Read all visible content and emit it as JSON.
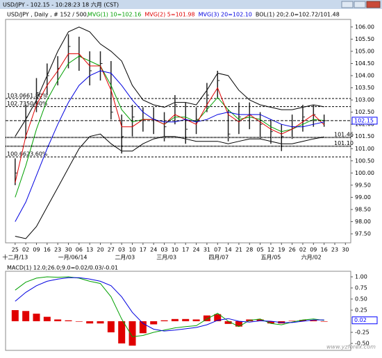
{
  "window": {
    "title": "USD/JPY - 102.15 - 10:28:23  18 六月 (CST)",
    "watermark": "www.yzforex.com"
  },
  "chart_data": [
    {
      "type": "ohlc",
      "title": "USD/JPY , Daily , # 152 / 500,",
      "x": [
        0,
        1,
        2,
        3,
        4,
        5,
        6,
        7,
        8,
        9,
        10,
        11,
        12,
        13,
        14,
        15,
        16,
        17,
        18,
        19,
        20,
        21,
        22,
        23,
        24,
        25,
        26,
        27,
        28,
        29
      ],
      "high": [
        100.6,
        102.8,
        103.9,
        104.5,
        104.8,
        105.7,
        105.6,
        105.0,
        105.0,
        104.6,
        102.4,
        102.8,
        102.7,
        102.7,
        102.5,
        103.2,
        102.9,
        102.7,
        103.7,
        104.2,
        102.6,
        102.9,
        102.9,
        102.5,
        102.2,
        102.0,
        102.4,
        102.8,
        102.8,
        102.4
      ],
      "low": [
        99.5,
        101.4,
        102.5,
        103.2,
        103.6,
        104.3,
        104.2,
        103.6,
        103.8,
        102.2,
        100.8,
        101.5,
        101.7,
        101.6,
        101.3,
        102.0,
        101.2,
        101.6,
        102.5,
        103.1,
        101.3,
        101.6,
        101.8,
        101.4,
        101.2,
        100.9,
        101.4,
        101.7,
        101.9,
        101.9
      ],
      "close": [
        100.0,
        102.3,
        103.3,
        104.0,
        104.3,
        105.2,
        104.8,
        104.2,
        104.5,
        102.5,
        101.5,
        102.3,
        102.2,
        102.2,
        101.9,
        102.8,
        101.8,
        102.2,
        103.2,
        103.8,
        101.6,
        102.3,
        102.4,
        102.0,
        101.7,
        101.5,
        101.9,
        102.3,
        102.4,
        102.15
      ],
      "bar_color": "#222222",
      "series": [
        {
          "name": "MVG(1) 10=102.16",
          "color": "#00a000",
          "values": [
            99.0,
            100.3,
            101.8,
            103.0,
            103.8,
            104.5,
            104.8,
            104.6,
            104.4,
            103.6,
            102.6,
            102.1,
            102.2,
            102.2,
            102.0,
            102.3,
            102.3,
            102.1,
            102.6,
            103.1,
            102.6,
            102.2,
            102.3,
            102.2,
            101.9,
            101.7,
            101.8,
            102.0,
            102.2,
            102.16
          ]
        },
        {
          "name": "MVG(2) 5=101.98",
          "color": "#e00000",
          "values": [
            99.6,
            101.5,
            102.8,
            103.6,
            104.2,
            104.9,
            104.9,
            104.4,
            104.4,
            103.4,
            101.9,
            101.9,
            102.2,
            102.2,
            102.0,
            102.4,
            102.2,
            102.0,
            102.8,
            103.5,
            102.4,
            102.1,
            102.4,
            102.1,
            101.8,
            101.6,
            101.8,
            102.1,
            102.4,
            101.98
          ]
        },
        {
          "name": "MVG(3) 20=102.10",
          "color": "#0000e0",
          "values": [
            98.0,
            98.8,
            99.9,
            101.0,
            102.0,
            102.9,
            103.6,
            104.0,
            104.2,
            104.1,
            103.6,
            103.0,
            102.5,
            102.2,
            102.1,
            102.1,
            102.2,
            102.1,
            102.2,
            102.4,
            102.5,
            102.4,
            102.4,
            102.4,
            102.2,
            102.0,
            101.9,
            101.9,
            102.0,
            102.1
          ]
        }
      ],
      "band_name": "BOL(1) 20;2.0=102.72/101.48",
      "band_color": "#000000",
      "upper": [
        101.5,
        102.2,
        103.0,
        104.0,
        105.0,
        105.8,
        106.0,
        105.8,
        105.3,
        105.0,
        104.6,
        103.6,
        103.0,
        102.8,
        102.7,
        102.9,
        102.9,
        102.8,
        103.4,
        104.1,
        104.0,
        103.4,
        103.0,
        102.8,
        102.7,
        102.6,
        102.6,
        102.7,
        102.8,
        102.72
      ],
      "lower": [
        97.4,
        97.3,
        97.8,
        98.6,
        99.4,
        100.2,
        101.0,
        101.5,
        101.6,
        101.2,
        100.9,
        100.9,
        101.2,
        101.4,
        101.5,
        101.5,
        101.4,
        101.3,
        101.3,
        101.3,
        101.2,
        101.3,
        101.4,
        101.4,
        101.3,
        101.2,
        101.2,
        101.3,
        101.4,
        101.48
      ],
      "levels": [
        {
          "value": 103.06,
          "note": "61.80%"
        },
        {
          "value": 102.73,
          "note": "50.00%"
        },
        {
          "value": 100.66,
          "note": "23.60%"
        },
        {
          "value": 101.46
        },
        {
          "value": 101.1,
          "label": "101.10"
        }
      ],
      "last": 102.15,
      "xlim": [
        -0.9,
        31.5
      ],
      "ylim": [
        97.13,
        106.31
      ],
      "xticks": [
        {
          "value": 0,
          "label": "25"
        },
        {
          "value": 1,
          "label": "02"
        },
        {
          "value": 2,
          "label": "09"
        },
        {
          "value": 3,
          "label": "16"
        },
        {
          "value": 4,
          "label": "23"
        },
        {
          "value": 5,
          "label": "30"
        },
        {
          "value": 6,
          "label": "06"
        },
        {
          "value": 7,
          "label": "13"
        },
        {
          "value": 8,
          "label": "20"
        },
        {
          "value": 9,
          "label": "27"
        },
        {
          "value": 10,
          "label": "03"
        },
        {
          "value": 11,
          "label": "10"
        },
        {
          "value": 12,
          "label": "17"
        },
        {
          "value": 13,
          "label": "24"
        },
        {
          "value": 14,
          "label": "03"
        },
        {
          "value": 15,
          "label": "10"
        },
        {
          "value": 16,
          "label": "17"
        },
        {
          "value": 17,
          "label": "24"
        },
        {
          "value": 18,
          "label": "31"
        },
        {
          "value": 19,
          "label": "07"
        },
        {
          "value": 20,
          "label": "14"
        },
        {
          "value": 21,
          "label": "21"
        },
        {
          "value": 22,
          "label": "28"
        },
        {
          "value": 23,
          "label": "05"
        },
        {
          "value": 24,
          "label": "12"
        },
        {
          "value": 25,
          "label": "19"
        },
        {
          "value": 26,
          "label": "26"
        },
        {
          "value": 27,
          "label": "02"
        },
        {
          "value": 28,
          "label": "09"
        },
        {
          "value": 29,
          "label": "16"
        },
        {
          "value": 30,
          "label": "23"
        },
        {
          "value": 31,
          "label": "30"
        }
      ],
      "month_ticks": [
        {
          "value": 0,
          "label": "十二月/13"
        },
        {
          "value": 5.4,
          "label": "一月/06/14"
        },
        {
          "value": 10.3,
          "label": "二月/03"
        },
        {
          "value": 14.2,
          "label": "三月/03"
        },
        {
          "value": 19.1,
          "label": "四月/07"
        },
        {
          "value": 24,
          "label": "五月/05"
        },
        {
          "value": 27.8,
          "label": "六月/02"
        }
      ],
      "yticks": [
        {
          "value": 97.5,
          "label": "97.50"
        },
        {
          "value": 98,
          "label": "98.00"
        },
        {
          "value": 98.5,
          "label": "98.50"
        },
        {
          "value": 99,
          "label": "99.00"
        },
        {
          "value": 99.5,
          "label": "99.50"
        },
        {
          "value": 100,
          "label": "100.00"
        },
        {
          "value": 100.5,
          "label": "100.50"
        },
        {
          "value": 101,
          "label": "101.00"
        },
        {
          "value": 101.5,
          "label": "101.50"
        },
        {
          "value": 102,
          "label": "102.00"
        },
        {
          "value": 102.5,
          "label": "102.50"
        },
        {
          "value": 103,
          "label": "103.00"
        },
        {
          "value": 103.5,
          "label": "103.50"
        },
        {
          "value": 104,
          "label": "104.00"
        },
        {
          "value": 104.5,
          "label": "104.50"
        },
        {
          "value": 105,
          "label": "105.00"
        },
        {
          "value": 105.5,
          "label": "105.50"
        },
        {
          "value": 106,
          "label": "106.00"
        }
      ]
    },
    {
      "type": "macd",
      "title": "MACD(1) 12.0;26.0;9.0=0.02/0.03/-0.01",
      "x": [
        0,
        1,
        2,
        3,
        4,
        5,
        6,
        7,
        8,
        9,
        10,
        11,
        12,
        13,
        14,
        15,
        16,
        17,
        18,
        19,
        20,
        21,
        22,
        23,
        24,
        25,
        26,
        27,
        28,
        29
      ],
      "series": [
        {
          "name": "MACD",
          "color": "#00a000",
          "values": [
            0.7,
            0.88,
            0.97,
            1.0,
            0.99,
            1.0,
            0.97,
            0.9,
            0.85,
            0.55,
            0.05,
            -0.35,
            -0.32,
            -0.25,
            -0.2,
            -0.15,
            -0.12,
            -0.1,
            0.05,
            0.18,
            0.0,
            -0.12,
            0.02,
            0.05,
            -0.05,
            -0.08,
            -0.02,
            0.03,
            0.05,
            0.02
          ]
        },
        {
          "name": "Signal",
          "color": "#0000e0",
          "values": [
            0.45,
            0.65,
            0.8,
            0.9,
            0.95,
            0.98,
            0.98,
            0.95,
            0.9,
            0.8,
            0.55,
            0.2,
            -0.05,
            -0.18,
            -0.22,
            -0.2,
            -0.17,
            -0.14,
            -0.08,
            0.02,
            0.06,
            0.0,
            -0.02,
            0.01,
            0.0,
            -0.03,
            -0.03,
            0.0,
            0.03,
            0.03
          ]
        }
      ],
      "histogram": [
        0.25,
        0.23,
        0.17,
        0.1,
        0.04,
        0.02,
        -0.01,
        -0.05,
        -0.05,
        -0.25,
        -0.5,
        -0.55,
        -0.27,
        -0.07,
        0.02,
        0.05,
        0.05,
        0.04,
        0.13,
        0.16,
        -0.06,
        -0.12,
        0.04,
        0.04,
        -0.05,
        -0.05,
        0.01,
        0.03,
        0.02,
        -0.01
      ],
      "hist_color": "#e00000",
      "last": 0.02,
      "xlim": [
        -0.9,
        31.5
      ],
      "ylim": [
        -0.656,
        1.125
      ],
      "yticks": [
        {
          "value": 1,
          "label": "1.00"
        },
        {
          "value": 0.75,
          "label": "0.75"
        },
        {
          "value": 0.5,
          "label": "0.50"
        },
        {
          "value": 0.25,
          "label": "0.25"
        },
        {
          "value": -0.25,
          "label": "-0.25"
        },
        {
          "value": -0.5,
          "label": "-0.50"
        }
      ]
    }
  ]
}
